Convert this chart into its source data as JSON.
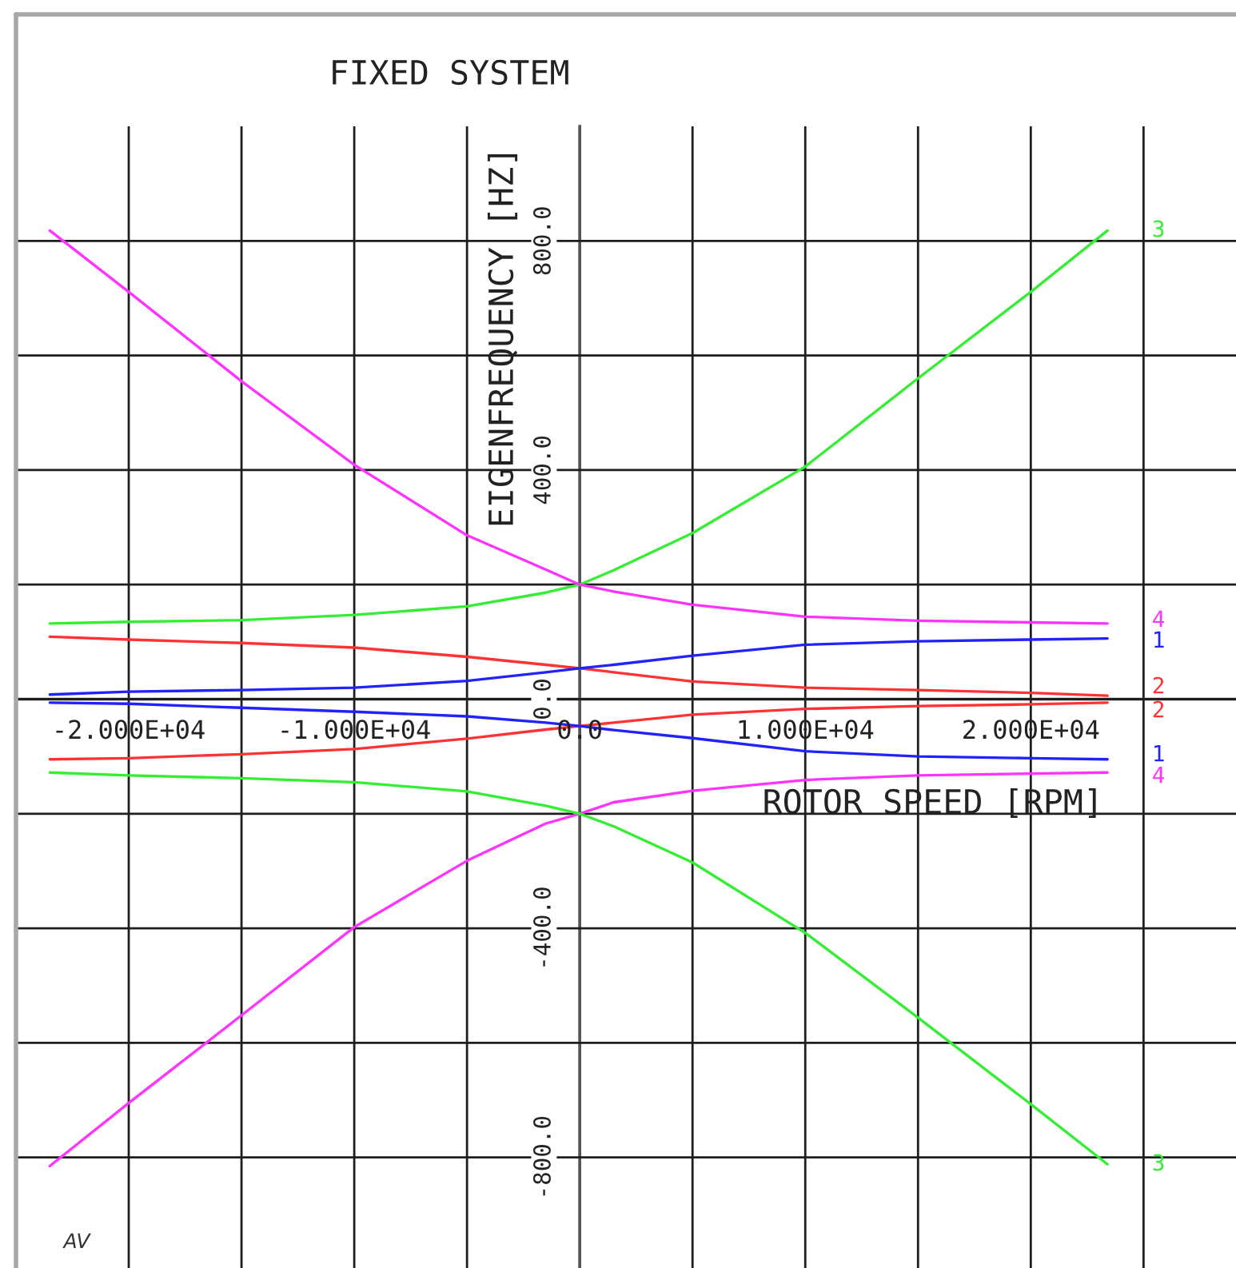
{
  "chart_data": {
    "type": "line",
    "title": "FIXED SYSTEM",
    "xlabel": "ROTOR SPEED [RPM]",
    "ylabel": "EIGENFREQUENCY [HZ]",
    "annotations": [
      "AV"
    ],
    "x": [
      -23500,
      -20000,
      -15000,
      -10000,
      -5000,
      -1500,
      0,
      1500,
      5000,
      10000,
      15000,
      20000,
      23400
    ],
    "series": [
      {
        "name": "3",
        "color": "#33ee33",
        "values": [
          132,
          135,
          138,
          147,
          162,
          186,
          200,
          225,
          290,
          406,
          560,
          711,
          818
        ]
      },
      {
        "name": "4",
        "color": "#ff33ff",
        "values": [
          818,
          711,
          555,
          409,
          286,
          226,
          200,
          188,
          165,
          144,
          137,
          134,
          132
        ]
      },
      {
        "name": "2",
        "color": "#ff3333",
        "values": [
          109,
          104,
          98,
          90,
          74,
          60,
          54,
          47,
          31,
          20,
          16,
          11,
          6
        ]
      },
      {
        "name": "1",
        "color": "#2222ff",
        "values": [
          8,
          13,
          16,
          20,
          32,
          47,
          54,
          60,
          76,
          95,
          101,
          104,
          106
        ]
      },
      {
        "name": "2",
        "color": "#ff3333",
        "values": [
          -105,
          -103,
          -96,
          -87,
          -69,
          -53,
          -47,
          -41,
          -27,
          -17,
          -12,
          -9,
          -6
        ]
      },
      {
        "name": "1",
        "color": "#2222ff",
        "values": [
          -6,
          -8,
          -15,
          -22,
          -30,
          -41,
          -47,
          -54,
          -68,
          -91,
          -100,
          -103,
          -105
        ]
      },
      {
        "name": "4",
        "color": "#ff33ff",
        "values": [
          -815,
          -705,
          -552,
          -398,
          -282,
          -217,
          -200,
          -180,
          -160,
          -141,
          -133,
          -130,
          -128
        ]
      },
      {
        "name": "3",
        "color": "#33ee33",
        "values": [
          -128,
          -133,
          -138,
          -145,
          -161,
          -186,
          -200,
          -222,
          -285,
          -408,
          -556,
          -707,
          -812
        ]
      }
    ],
    "xlim": [
      -25000,
      29100
    ],
    "ylim": [
      -993,
      1000
    ],
    "xticks": [
      {
        "value": -20000,
        "label": "-2.000E+04"
      },
      {
        "value": -15000,
        "label": null
      },
      {
        "value": -10000,
        "label": "-1.000E+04"
      },
      {
        "value": -5000,
        "label": null
      },
      {
        "value": 0,
        "label": "0.0"
      },
      {
        "value": 5000,
        "label": null
      },
      {
        "value": 10000,
        "label": "1.000E+04"
      },
      {
        "value": 15000,
        "label": null
      },
      {
        "value": 20000,
        "label": "2.000E+04"
      },
      {
        "value": 25000,
        "label": null
      }
    ],
    "yticks": [
      {
        "value": -800,
        "label": "-800.0"
      },
      {
        "value": -600,
        "label": null
      },
      {
        "value": -400,
        "label": "-400.0"
      },
      {
        "value": -200,
        "label": null
      },
      {
        "value": 0,
        "label": "0.0"
      },
      {
        "value": 200,
        "label": null
      },
      {
        "value": 400,
        "label": "400.0"
      },
      {
        "value": 600,
        "label": null
      },
      {
        "value": 800,
        "label": "800.0"
      }
    ],
    "grid": true,
    "line_style": "solid",
    "marker": "none"
  }
}
